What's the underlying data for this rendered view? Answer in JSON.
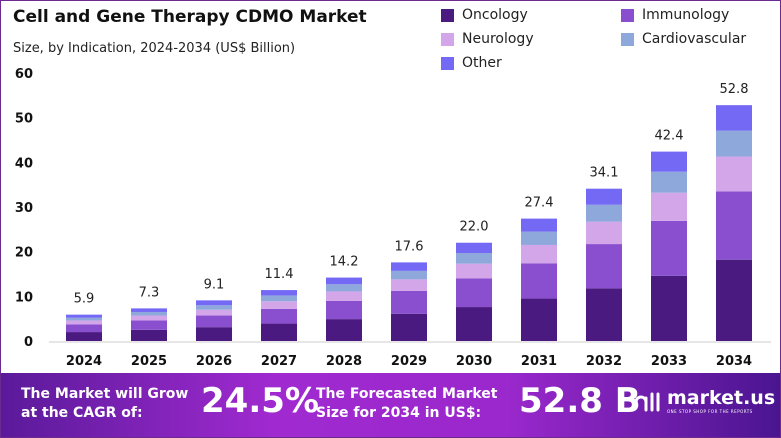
{
  "chart_data": {
    "type": "bar",
    "stacked": true,
    "title": "Cell and Gene Therapy CDMO Market",
    "subtitle": "Size, by Indication, 2024-2034  (US$ Billion)",
    "categories": [
      "2024",
      "2025",
      "2026",
      "2027",
      "2028",
      "2029",
      "2030",
      "2031",
      "2032",
      "2033",
      "2034"
    ],
    "totals": [
      "5.9",
      "7.3",
      "9.1",
      "11.4",
      "14.2",
      "17.6",
      "22.0",
      "27.4",
      "34.1",
      "42.4",
      "52.8"
    ],
    "series": [
      {
        "name": "Oncology",
        "color": "#4b1a80",
        "values": [
          2.0,
          2.5,
          3.1,
          3.9,
          4.9,
          6.1,
          7.6,
          9.5,
          11.8,
          14.6,
          18.2
        ]
      },
      {
        "name": "Immunology",
        "color": "#8a4fcf",
        "values": [
          1.7,
          2.1,
          2.6,
          3.3,
          4.1,
          5.1,
          6.4,
          7.9,
          9.9,
          12.3,
          15.3
        ]
      },
      {
        "name": "Neurology",
        "color": "#d3a6ea",
        "values": [
          0.9,
          1.1,
          1.3,
          1.7,
          2.1,
          2.6,
          3.3,
          4.1,
          5.0,
          6.3,
          7.8
        ]
      },
      {
        "name": "Cardiovascular",
        "color": "#8fa8dc",
        "values": [
          0.6,
          0.8,
          1.0,
          1.3,
          1.6,
          1.9,
          2.4,
          3.0,
          3.8,
          4.7,
          5.8
        ]
      },
      {
        "name": "Other",
        "color": "#7369f5",
        "values": [
          0.7,
          0.8,
          1.1,
          1.2,
          1.5,
          1.9,
          2.3,
          2.9,
          3.6,
          4.5,
          5.7
        ]
      }
    ],
    "yticks": [
      "0",
      "10",
      "20",
      "30",
      "40",
      "50",
      "60"
    ],
    "ylim": [
      0,
      60
    ],
    "grid": false,
    "legend": "top-right"
  },
  "footer": {
    "cagr_text": "The Market will Grow at the CAGR of:",
    "cagr_value": "24.5%",
    "forecast_text": "The Forecasted Market Size for 2034 in US$:",
    "forecast_value": "52.8 B",
    "brand": "market.us",
    "tagline": "ONE STOP SHOP FOR THE REPORTS"
  }
}
